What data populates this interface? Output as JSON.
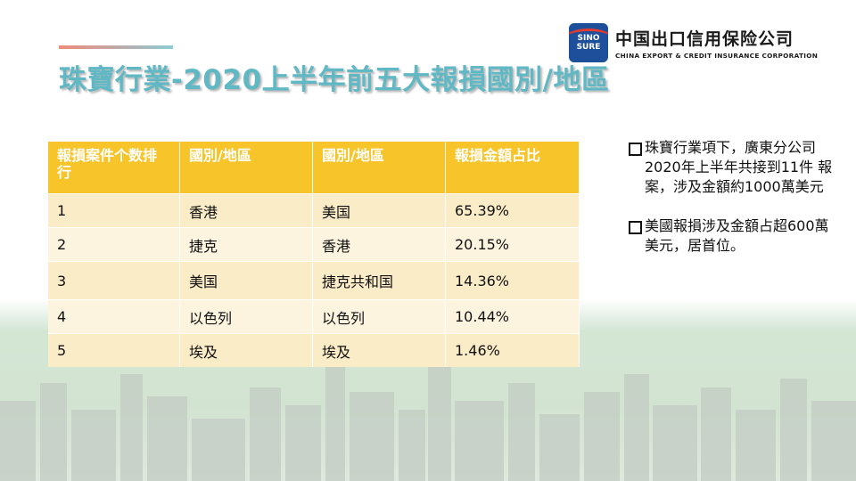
{
  "title": "珠寶行業-2020上半年前五大報損國別/地區",
  "logo": {
    "badge_line1": "SINO",
    "badge_line2": "SURE",
    "name_cn": "中国出口信用保险公司",
    "name_en": "CHINA EXPORT & CREDIT INSURANCE CORPORATION"
  },
  "table": {
    "headers": [
      "報損案件个数排行",
      "國別/地區",
      "國別/地區",
      "報損金額占比"
    ],
    "rows": [
      [
        "1",
        "香港",
        "美国",
        "65.39%"
      ],
      [
        "2",
        "捷克",
        "香港",
        "20.15%"
      ],
      [
        "3",
        "美国",
        "捷克共和国",
        "14.36%"
      ],
      [
        "4",
        "以色列",
        "以色列",
        "10.44%"
      ],
      [
        "5",
        "埃及",
        "埃及",
        "1.46%"
      ]
    ]
  },
  "notes": [
    "珠寶行業項下，廣東分公司2020年上半年共接到11件 報案，涉及金額約1000萬美元",
    "美國報損涉及金額占超600萬美元，居首位。"
  ],
  "colors": {
    "title": "#5fb8c4",
    "header_bg": "#f7c52a",
    "row_odd": "#fbecc8",
    "row_even": "#fdf4e0",
    "logo_blue": "#1d4f9a"
  }
}
